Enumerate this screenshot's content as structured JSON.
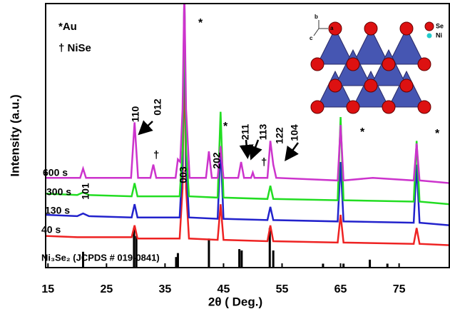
{
  "chart_data": {
    "type": "line",
    "x_label": "2θ ( Deg.)",
    "y_label": "Intensity (a.u.)",
    "xlim": [
      14.6,
      83.7
    ],
    "ylim": [
      0,
      100
    ],
    "xticks": [
      15,
      25,
      35,
      45,
      55,
      65,
      75
    ],
    "series": [
      {
        "name": "40 s",
        "color": "#ee2222",
        "x": [
          14.6,
          20,
          29.3,
          29.8,
          30.3,
          37.5,
          38.0,
          38.3,
          38.6,
          39.1,
          44,
          44.5,
          45,
          52.5,
          53,
          53.5,
          64.5,
          65,
          65.5,
          77.5,
          78,
          78.5,
          83.7
        ],
        "values": [
          12,
          11.5,
          11.5,
          16,
          11,
          11,
          30,
          85,
          30,
          11,
          10.5,
          24,
          10.5,
          10,
          16,
          10,
          9.5,
          20,
          9.5,
          9,
          15,
          9,
          8.5
        ]
      },
      {
        "name": "130 s",
        "color": "#2222cc",
        "x": [
          14.6,
          20,
          21,
          22,
          29.3,
          29.8,
          30.3,
          37.5,
          38,
          38.3,
          38.6,
          39.1,
          44,
          44.5,
          45,
          52.5,
          53,
          53.5,
          64.5,
          65,
          65.5,
          77.5,
          78,
          78.5,
          83.7
        ],
        "values": [
          20,
          19.5,
          20.5,
          19.5,
          19,
          24,
          19,
          19,
          40,
          105,
          40,
          19,
          18.5,
          46,
          18.5,
          18,
          23,
          18,
          17.5,
          40,
          17.5,
          17,
          39,
          17,
          16
        ]
      },
      {
        "name": "300 s",
        "color": "#22dd22",
        "x": [
          14.6,
          20,
          21,
          22,
          29.3,
          29.8,
          30.3,
          37.5,
          38,
          38.3,
          38.6,
          39.1,
          44,
          44.5,
          45,
          52.5,
          53,
          53.5,
          64.5,
          65,
          65.5,
          77.5,
          78,
          78.5,
          83.7
        ],
        "values": [
          28,
          27.5,
          28.5,
          27.5,
          27,
          32,
          27,
          27,
          45,
          105,
          45,
          27,
          26.5,
          59,
          26.5,
          26,
          31,
          26,
          25.5,
          57,
          25.5,
          25,
          48,
          25,
          24
        ]
      },
      {
        "name": "600 s",
        "color": "#cc33cc",
        "x": [
          14.6,
          20.5,
          21,
          21.5,
          29.2,
          29.8,
          30.4,
          32.5,
          33,
          33.5,
          36.8,
          37.2,
          37.6,
          38,
          38.3,
          38.6,
          39.2,
          42,
          42.5,
          43,
          44,
          44.5,
          45,
          47.5,
          48,
          48.5,
          49.7,
          50,
          50.3,
          52.5,
          53,
          53.5,
          54,
          64.5,
          65,
          65.5,
          70.5,
          77.5,
          78,
          78.5,
          83.7
        ],
        "values": [
          34,
          34,
          37.5,
          34,
          34,
          55,
          34,
          34,
          39,
          34,
          34,
          41,
          40,
          60,
          105,
          60,
          34,
          34,
          44,
          34,
          34,
          46,
          34,
          34,
          40,
          34,
          34,
          36,
          34,
          34,
          48,
          39,
          34,
          33,
          54,
          33,
          34,
          33,
          47,
          33,
          32
        ]
      }
    ],
    "reference": {
      "name": "Ni₃Se₂ (JCPDS # 019-0841)",
      "color": "#000000",
      "x": [
        21,
        29.7,
        30.1,
        36.9,
        37.2,
        42.5,
        47.7,
        48.1,
        52.9,
        53.5,
        62,
        65.5,
        70,
        73
      ],
      "values": [
        6,
        15,
        12,
        4,
        5.5,
        11,
        7,
        6.5,
        15,
        6.5,
        1.5,
        1.5,
        3,
        1.5
      ]
    },
    "annotations": [
      "*Au",
      "† NiSe",
      "101",
      "110",
      "012",
      "†",
      "003",
      "*",
      "202",
      "*",
      "211",
      "113",
      "†",
      "122",
      "104",
      "*",
      "*"
    ],
    "inset_labels": {
      "legend": [
        "Se",
        "Ni"
      ],
      "axes": [
        "b",
        "a",
        "c"
      ]
    }
  }
}
